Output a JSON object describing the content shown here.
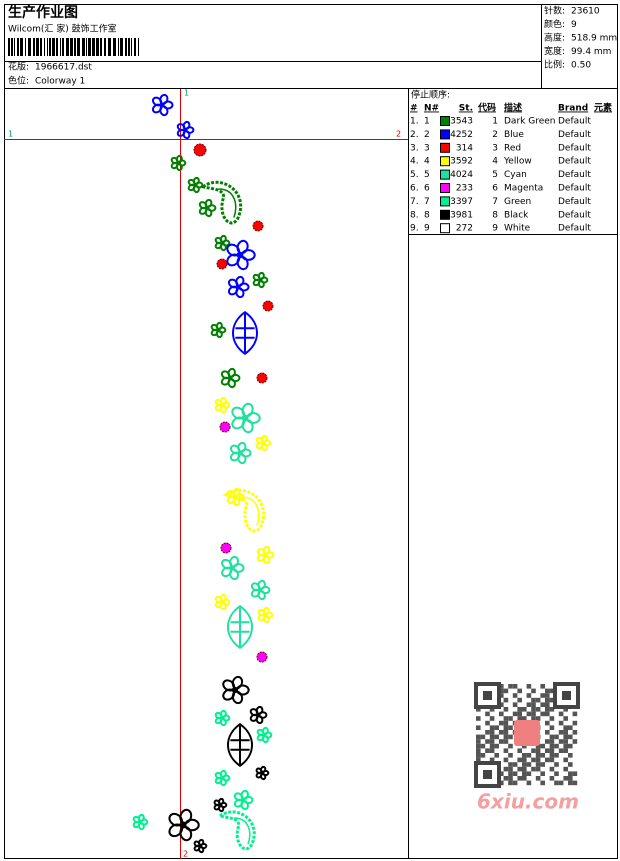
{
  "header": {
    "title": "生产作业图",
    "studio": "Wilcom(汇 家) 鼓饰工作室",
    "design_label": "花版:",
    "design": "1966617.dst",
    "colorway_label": "色位:",
    "colorway": "Colorway 1"
  },
  "stats": [
    {
      "label": "针数:",
      "value": "23610"
    },
    {
      "label": "颜色:",
      "value": "9"
    },
    {
      "label": "高度:",
      "value": "518.9 mm"
    },
    {
      "label": "宽度:",
      "value": "99.4 mm"
    },
    {
      "label": "比例:",
      "value": "0.50"
    }
  ],
  "guides": {
    "top": "1",
    "left": "1",
    "right": "2",
    "bottom": "2"
  },
  "stop_sequence": {
    "title": "停止顺序:",
    "columns": [
      "#",
      "N#",
      "St.",
      "代码",
      "描述",
      "Brand",
      "元素"
    ],
    "rows": [
      {
        "cells": [
          "1.",
          "1",
          "3543",
          "1",
          "Dark Green",
          "Default"
        ],
        "color": "#008000"
      },
      {
        "cells": [
          "2.",
          "2",
          "4252",
          "2",
          "Blue",
          "Default"
        ],
        "color": "#0000ff"
      },
      {
        "cells": [
          "3.",
          "3",
          "314",
          "3",
          "Red",
          "Default"
        ],
        "color": "#ff0000"
      },
      {
        "cells": [
          "4.",
          "4",
          "3592",
          "4",
          "Yellow",
          "Default"
        ],
        "color": "#ffff00"
      },
      {
        "cells": [
          "5.",
          "5",
          "4024",
          "5",
          "Cyan",
          "Default"
        ],
        "color": "#20e0a0"
      },
      {
        "cells": [
          "6.",
          "6",
          "233",
          "6",
          "Magenta",
          "Default"
        ],
        "color": "#ff00ff"
      },
      {
        "cells": [
          "7.",
          "7",
          "3397",
          "7",
          "Green",
          "Default"
        ],
        "color": "#00f090"
      },
      {
        "cells": [
          "8.",
          "8",
          "3981",
          "8",
          "Black",
          "Default"
        ],
        "color": "#000000"
      },
      {
        "cells": [
          "9.",
          "9",
          "272",
          "9",
          "White",
          "Default"
        ],
        "color": "#ffffff"
      }
    ]
  },
  "watermark": "6xiu.com"
}
